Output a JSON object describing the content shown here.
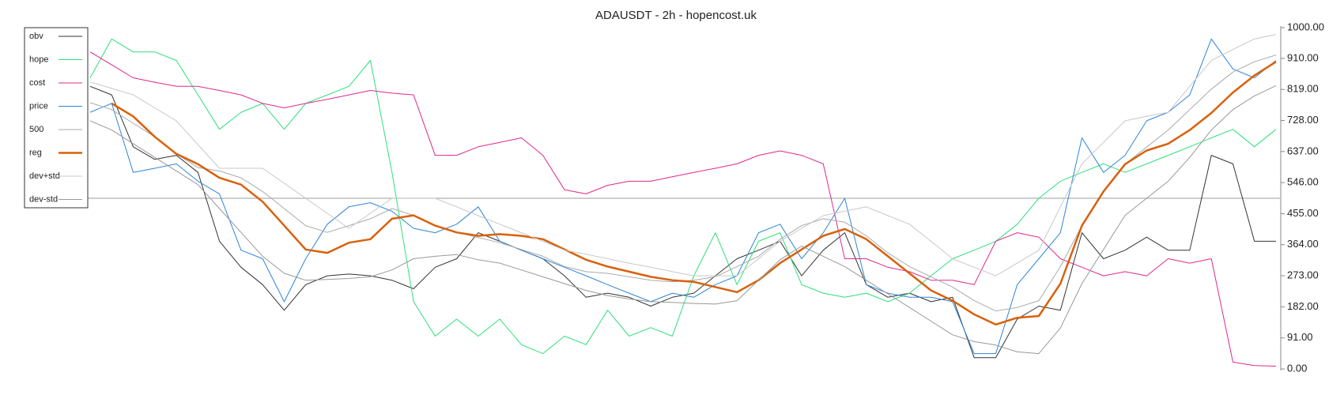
{
  "chart_data": {
    "type": "line",
    "title": "ADAUSDT - 2h - hopencost.uk",
    "categories": [
      null,
      null,
      null,
      null,
      null,
      null,
      null,
      null,
      null,
      null,
      null,
      null,
      null,
      null,
      null,
      null,
      null,
      null,
      null,
      null,
      null,
      null,
      null,
      null,
      null,
      null,
      null,
      null,
      null,
      null,
      null,
      null,
      null,
      null,
      null,
      null,
      null,
      null,
      null,
      null,
      null,
      null,
      null,
      null,
      null,
      null,
      null,
      null,
      null,
      null,
      null,
      null,
      null,
      null,
      null,
      null
    ],
    "ylim": [
      0,
      1000
    ],
    "yticks": [
      {
        "value": 1000,
        "label": "1000.00"
      },
      {
        "value": 910,
        "label": "910.00"
      },
      {
        "value": 819,
        "label": "819.00"
      },
      {
        "value": 728,
        "label": "728.00"
      },
      {
        "value": 637,
        "label": "637.00"
      },
      {
        "value": 546,
        "label": "546.00"
      },
      {
        "value": 455,
        "label": "455.00"
      },
      {
        "value": 364,
        "label": "364.00"
      },
      {
        "value": 273,
        "label": "273.00"
      },
      {
        "value": 182,
        "label": "182.00"
      },
      {
        "value": 91,
        "label": "91.00"
      },
      {
        "value": 0,
        "label": "0.00"
      }
    ],
    "hline": 500,
    "hline_color": "#b0b0b0",
    "grid": false,
    "legend": "upper left",
    "series": [
      {
        "name": "obv",
        "color": "#333333",
        "width": 1,
        "values": [
          828,
          803,
          651,
          614,
          626,
          576,
          374,
          298,
          247,
          172,
          247,
          273,
          278,
          273,
          260,
          235,
          298,
          323,
          399,
          374,
          348,
          323,
          273,
          210,
          222,
          210,
          184,
          210,
          222,
          273,
          323,
          348,
          374,
          273,
          348,
          399,
          247,
          210,
          222,
          197,
          210,
          33,
          33,
          146,
          184,
          172,
          399,
          323,
          348,
          386,
          348,
          348,
          626,
          601,
          374,
          374
        ]
      },
      {
        "name": "hope",
        "color": "#2ee07a",
        "width": 1,
        "values": [
          853,
          967,
          929,
          929,
          904,
          803,
          702,
          752,
          778,
          702,
          778,
          803,
          828,
          904,
          576,
          197,
          96,
          146,
          96,
          146,
          71,
          45,
          96,
          71,
          172,
          96,
          121,
          96,
          273,
          399,
          247,
          374,
          399,
          247,
          222,
          210,
          222,
          197,
          222,
          273,
          323,
          348,
          374,
          424,
          500,
          550,
          576,
          601,
          576,
          601,
          626,
          651,
          677,
          702,
          651,
          702
        ]
      },
      {
        "name": "cost",
        "color": "#e0288c",
        "width": 1,
        "values": [
          929,
          891,
          853,
          840,
          828,
          828,
          816,
          803,
          778,
          765,
          778,
          790,
          803,
          816,
          808,
          803,
          626,
          626,
          651,
          664,
          677,
          626,
          525,
          513,
          538,
          550,
          550,
          563,
          576,
          588,
          601,
          626,
          639,
          626,
          601,
          323,
          323,
          298,
          285,
          260,
          260,
          247,
          374,
          399,
          386,
          323,
          298,
          273,
          285,
          273,
          323,
          310,
          323,
          20,
          10,
          8
        ]
      },
      {
        "name": "price",
        "color": "#2f86d8",
        "width": 1,
        "values": [
          752,
          778,
          576,
          588,
          601,
          550,
          513,
          348,
          323,
          197,
          323,
          424,
          475,
          487,
          462,
          412,
          399,
          424,
          475,
          374,
          348,
          323,
          298,
          273,
          247,
          222,
          197,
          222,
          210,
          247,
          273,
          399,
          424,
          323,
          399,
          500,
          247,
          222,
          210,
          210,
          197,
          45,
          45,
          247,
          323,
          399,
          677,
          576,
          626,
          727,
          752,
          803,
          967,
          879,
          853,
          904
        ]
      },
      {
        "name": "500",
        "color": "#aaaaaa",
        "width": 1,
        "values": [
          780,
          760,
          720,
          680,
          630,
          590,
          580,
          560,
          520,
          470,
          420,
          400,
          420,
          440,
          470,
          450,
          420,
          400,
          385,
          370,
          350,
          330,
          300,
          285,
          280,
          270,
          260,
          255,
          260,
          270,
          300,
          330,
          380,
          420,
          440,
          430,
          390,
          340,
          300,
          270,
          240,
          200,
          170,
          180,
          200,
          300,
          420,
          520,
          600,
          650,
          700,
          760,
          820,
          870,
          900,
          920
        ]
      },
      {
        "name": "reg",
        "color": "#d9600b",
        "width": 2.5,
        "values": [
          null,
          778,
          740,
          680,
          630,
          600,
          560,
          540,
          490,
          420,
          350,
          340,
          370,
          380,
          440,
          450,
          420,
          400,
          390,
          395,
          390,
          380,
          350,
          320,
          300,
          285,
          270,
          260,
          255,
          240,
          225,
          260,
          310,
          350,
          390,
          410,
          380,
          330,
          280,
          230,
          200,
          160,
          130,
          150,
          155,
          250,
          420,
          520,
          600,
          640,
          660,
          700,
          750,
          810,
          860,
          900
        ]
      },
      {
        "name": "dev+std",
        "color": "#c8c8c8",
        "width": 1,
        "values": [
          841,
          822,
          803,
          765,
          727,
          657,
          588,
          588,
          588,
          544,
          500,
          456,
          412,
          456,
          500,
          500,
          500,
          475,
          449,
          424,
          399,
          374,
          348,
          336,
          323,
          310,
          298,
          285,
          273,
          273,
          273,
          323,
          374,
          412,
          449,
          462,
          475,
          449,
          424,
          374,
          323,
          298,
          273,
          310,
          348,
          475,
          601,
          664,
          727,
          740,
          752,
          828,
          904,
          936,
          967,
          980
        ]
      },
      {
        "name": "dev-std",
        "color": "#999999",
        "width": 1,
        "values": [
          727,
          700,
          660,
          620,
          580,
          540,
          470,
          400,
          330,
          280,
          260,
          262,
          265,
          270,
          290,
          323,
          330,
          335,
          320,
          310,
          290,
          270,
          250,
          230,
          215,
          205,
          197,
          195,
          192,
          190,
          200,
          260,
          320,
          360,
          330,
          300,
          260,
          220,
          180,
          140,
          100,
          80,
          70,
          50,
          45,
          120,
          250,
          350,
          450,
          500,
          550,
          620,
          700,
          760,
          800,
          830
        ]
      }
    ]
  }
}
